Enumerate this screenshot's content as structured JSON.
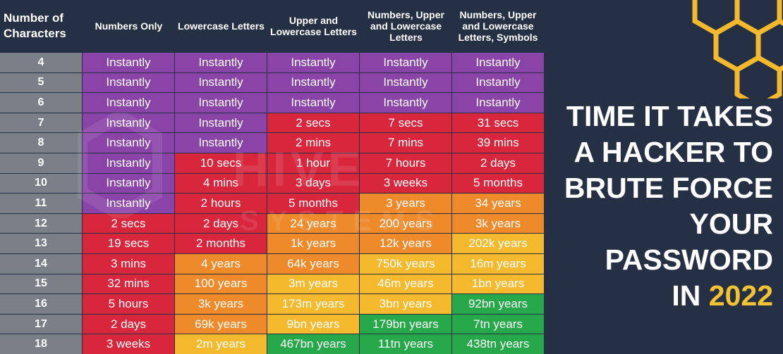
{
  "headers": [
    "Number of Characters",
    "Numbers Only",
    "Lowercase Letters",
    "Upper and Lowercase Letters",
    "Numbers, Upper and Lowercase Letters",
    "Numbers, Upper and Lowercase Letters, Symbols"
  ],
  "title": {
    "lines": [
      "TIME IT TAKES",
      "A HACKER TO",
      "BRUTE FORCE",
      "YOUR",
      "PASSWORD"
    ],
    "last_prefix": "IN ",
    "year": "2022"
  },
  "watermark": {
    "line1": "HIVE",
    "line2": "SYSTEMS"
  },
  "colors": {
    "background": "#263044",
    "row_label": "#7a7f88",
    "purple": "#8a44a8",
    "red": "#d8263c",
    "orange": "#ef8a2a",
    "yellow": "#f5b92d",
    "green": "#27a84a",
    "year_accent": "#f5c332"
  },
  "chart_data": {
    "type": "table",
    "columns": [
      "Numbers Only",
      "Lowercase Letters",
      "Upper and Lowercase Letters",
      "Numbers, Upper and Lowercase Letters",
      "Numbers, Upper and Lowercase Letters, Symbols"
    ],
    "rows": [
      {
        "chars": "4",
        "cells": [
          {
            "value": "Instantly",
            "level": "purple"
          },
          {
            "value": "Instantly",
            "level": "purple"
          },
          {
            "value": "Instantly",
            "level": "purple"
          },
          {
            "value": "Instantly",
            "level": "purple"
          },
          {
            "value": "Instantly",
            "level": "purple"
          }
        ]
      },
      {
        "chars": "5",
        "cells": [
          {
            "value": "Instantly",
            "level": "purple"
          },
          {
            "value": "Instantly",
            "level": "purple"
          },
          {
            "value": "Instantly",
            "level": "purple"
          },
          {
            "value": "Instantly",
            "level": "purple"
          },
          {
            "value": "Instantly",
            "level": "purple"
          }
        ]
      },
      {
        "chars": "6",
        "cells": [
          {
            "value": "Instantly",
            "level": "purple"
          },
          {
            "value": "Instantly",
            "level": "purple"
          },
          {
            "value": "Instantly",
            "level": "purple"
          },
          {
            "value": "Instantly",
            "level": "purple"
          },
          {
            "value": "Instantly",
            "level": "purple"
          }
        ]
      },
      {
        "chars": "7",
        "cells": [
          {
            "value": "Instantly",
            "level": "purple"
          },
          {
            "value": "Instantly",
            "level": "purple"
          },
          {
            "value": "2 secs",
            "level": "red"
          },
          {
            "value": "7 secs",
            "level": "red"
          },
          {
            "value": "31 secs",
            "level": "red"
          }
        ]
      },
      {
        "chars": "8",
        "cells": [
          {
            "value": "Instantly",
            "level": "purple"
          },
          {
            "value": "Instantly",
            "level": "purple"
          },
          {
            "value": "2 mins",
            "level": "red"
          },
          {
            "value": "7 mins",
            "level": "red"
          },
          {
            "value": "39 mins",
            "level": "red"
          }
        ]
      },
      {
        "chars": "9",
        "cells": [
          {
            "value": "Instantly",
            "level": "purple"
          },
          {
            "value": "10 secs",
            "level": "red"
          },
          {
            "value": "1 hour",
            "level": "red"
          },
          {
            "value": "7 hours",
            "level": "red"
          },
          {
            "value": "2 days",
            "level": "red"
          }
        ]
      },
      {
        "chars": "10",
        "cells": [
          {
            "value": "Instantly",
            "level": "purple"
          },
          {
            "value": "4 mins",
            "level": "red"
          },
          {
            "value": "3 days",
            "level": "red"
          },
          {
            "value": "3 weeks",
            "level": "red"
          },
          {
            "value": "5 months",
            "level": "red"
          }
        ]
      },
      {
        "chars": "11",
        "cells": [
          {
            "value": "Instantly",
            "level": "purple"
          },
          {
            "value": "2 hours",
            "level": "red"
          },
          {
            "value": "5 months",
            "level": "red"
          },
          {
            "value": "3 years",
            "level": "orange"
          },
          {
            "value": "34 years",
            "level": "orange"
          }
        ]
      },
      {
        "chars": "12",
        "cells": [
          {
            "value": "2 secs",
            "level": "red"
          },
          {
            "value": "2 days",
            "level": "red"
          },
          {
            "value": "24 years",
            "level": "orange"
          },
          {
            "value": "200 years",
            "level": "orange"
          },
          {
            "value": "3k years",
            "level": "orange"
          }
        ]
      },
      {
        "chars": "13",
        "cells": [
          {
            "value": "19 secs",
            "level": "red"
          },
          {
            "value": "2 months",
            "level": "red"
          },
          {
            "value": "1k years",
            "level": "orange"
          },
          {
            "value": "12k years",
            "level": "orange"
          },
          {
            "value": "202k years",
            "level": "yellow"
          }
        ]
      },
      {
        "chars": "14",
        "cells": [
          {
            "value": "3 mins",
            "level": "red"
          },
          {
            "value": "4 years",
            "level": "orange"
          },
          {
            "value": "64k years",
            "level": "orange"
          },
          {
            "value": "750k years",
            "level": "yellow"
          },
          {
            "value": "16m years",
            "level": "yellow"
          }
        ]
      },
      {
        "chars": "15",
        "cells": [
          {
            "value": "32 mins",
            "level": "red"
          },
          {
            "value": "100 years",
            "level": "orange"
          },
          {
            "value": "3m years",
            "level": "yellow"
          },
          {
            "value": "46m years",
            "level": "yellow"
          },
          {
            "value": "1bn years",
            "level": "yellow"
          }
        ]
      },
      {
        "chars": "16",
        "cells": [
          {
            "value": "5 hours",
            "level": "red"
          },
          {
            "value": "3k years",
            "level": "orange"
          },
          {
            "value": "173m years",
            "level": "yellow"
          },
          {
            "value": "3bn years",
            "level": "yellow"
          },
          {
            "value": "92bn years",
            "level": "green"
          }
        ]
      },
      {
        "chars": "17",
        "cells": [
          {
            "value": "2 days",
            "level": "red"
          },
          {
            "value": "69k years",
            "level": "orange"
          },
          {
            "value": "9bn years",
            "level": "yellow"
          },
          {
            "value": "179bn years",
            "level": "green"
          },
          {
            "value": "7tn years",
            "level": "green"
          }
        ]
      },
      {
        "chars": "18",
        "cells": [
          {
            "value": "3 weeks",
            "level": "red"
          },
          {
            "value": "2m years",
            "level": "yellow"
          },
          {
            "value": "467bn years",
            "level": "green"
          },
          {
            "value": "11tn years",
            "level": "green"
          },
          {
            "value": "438tn years",
            "level": "green"
          }
        ]
      }
    ]
  }
}
